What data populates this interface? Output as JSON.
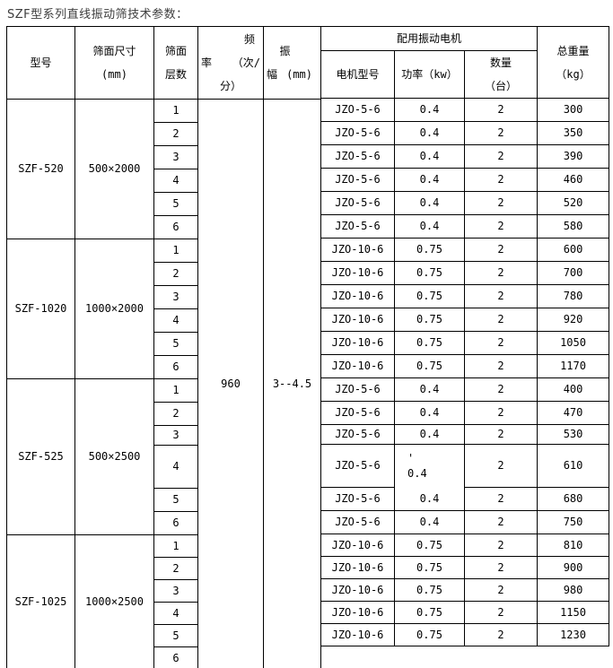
{
  "title": "SZF型系列直线振动筛技术参数：",
  "table": {
    "headers": {
      "model": "型号",
      "screen_size_l1": "筛面尺寸",
      "screen_size_l2": "(mm)",
      "layers_l1": "筛面",
      "layers_l2": "层数",
      "freq_l1": "频",
      "freq_l2a": "率",
      "freq_l2b": "（次/",
      "freq_l3": "分）",
      "amp_l1": "振",
      "amp_l2a": "幅",
      "amp_l2b": "(mm)",
      "motor_group": "配用振动电机",
      "motor_model": "电机型号",
      "power": "功率（kw）",
      "qty_l1": "数量",
      "qty_l2": "（台）",
      "weight_l1": "总重量",
      "weight_l2": "（kg）"
    },
    "frequency": "960",
    "amplitude": "3--4.5",
    "groups": [
      {
        "model": "SZF-520",
        "size": "500×2000",
        "rows": [
          {
            "layer": "1",
            "motor": "JZO-5-6",
            "power": "0.4",
            "qty": "2",
            "weight": "300"
          },
          {
            "layer": "2",
            "motor": "JZO-5-6",
            "power": "0.4",
            "qty": "2",
            "weight": "350"
          },
          {
            "layer": "3",
            "motor": "JZO-5-6",
            "power": "0.4",
            "qty": "2",
            "weight": "390"
          },
          {
            "layer": "4",
            "motor": "JZO-5-6",
            "power": "0.4",
            "qty": "2",
            "weight": "460"
          },
          {
            "layer": "5",
            "motor": "JZO-5-6",
            "power": "0.4",
            "qty": "2",
            "weight": "520"
          },
          {
            "layer": "6",
            "motor": "JZO-5-6",
            "power": "0.4",
            "qty": "2",
            "weight": "580"
          }
        ]
      },
      {
        "model": "SZF-1020",
        "size": "1000×2000",
        "rows": [
          {
            "layer": "1",
            "motor": "JZO-10-6",
            "power": "0.75",
            "qty": "2",
            "weight": "600"
          },
          {
            "layer": "2",
            "motor": "JZO-10-6",
            "power": "0.75",
            "qty": "2",
            "weight": "700"
          },
          {
            "layer": "3",
            "motor": "JZO-10-6",
            "power": "0.75",
            "qty": "2",
            "weight": "780"
          },
          {
            "layer": "4",
            "motor": "JZO-10-6",
            "power": "0.75",
            "qty": "2",
            "weight": "920"
          },
          {
            "layer": "5",
            "motor": "JZO-10-6",
            "power": "0.75",
            "qty": "2",
            "weight": "1050"
          },
          {
            "layer": "6",
            "motor": "JZO-10-6",
            "power": "0.75",
            "qty": "2",
            "weight": "1170"
          }
        ]
      },
      {
        "model": "SZF-525",
        "size": "500×2500",
        "rows": [
          {
            "layer": "1",
            "motor": "JZO-5-6",
            "power": "0.4",
            "qty": "2",
            "weight": "400"
          },
          {
            "layer": "2",
            "motor": "JZO-5-6",
            "power": "0.4",
            "qty": "2",
            "weight": "470"
          },
          {
            "layer": "3",
            "motor": "JZO-5-6",
            "power": "0.4",
            "qty": "2",
            "weight": "530"
          },
          {
            "layer": "4",
            "motor": "JZO-5-6",
            "power": "'\n0.4",
            "qty": "2",
            "weight": "610"
          },
          {
            "layer": "5",
            "motor": "JZO-5-6",
            "power": "0.4",
            "qty": "2",
            "weight": "680"
          },
          {
            "layer": "6",
            "motor": "JZO-5-6",
            "power": "0.4",
            "qty": "2",
            "weight": "750"
          }
        ]
      },
      {
        "model": "SZF-1025",
        "size": "1000×2500",
        "rows": [
          {
            "layer": "1",
            "motor": "JZO-10-6",
            "power": "0.75",
            "qty": "2",
            "weight": "810"
          },
          {
            "layer": "2",
            "motor": "JZO-10-6",
            "power": "0.75",
            "qty": "2",
            "weight": "900"
          },
          {
            "layer": "3",
            "motor": "JZO-10-6",
            "power": "0.75",
            "qty": "2",
            "weight": "980"
          },
          {
            "layer": "4",
            "motor": "JZO-10-6",
            "power": "0.75",
            "qty": "2",
            "weight": "1150"
          },
          {
            "layer": "5",
            "motor": "JZO-10-6",
            "power": "0.75",
            "qty": "2",
            "weight": "1230"
          },
          {
            "layer": "6"
          }
        ]
      }
    ]
  }
}
